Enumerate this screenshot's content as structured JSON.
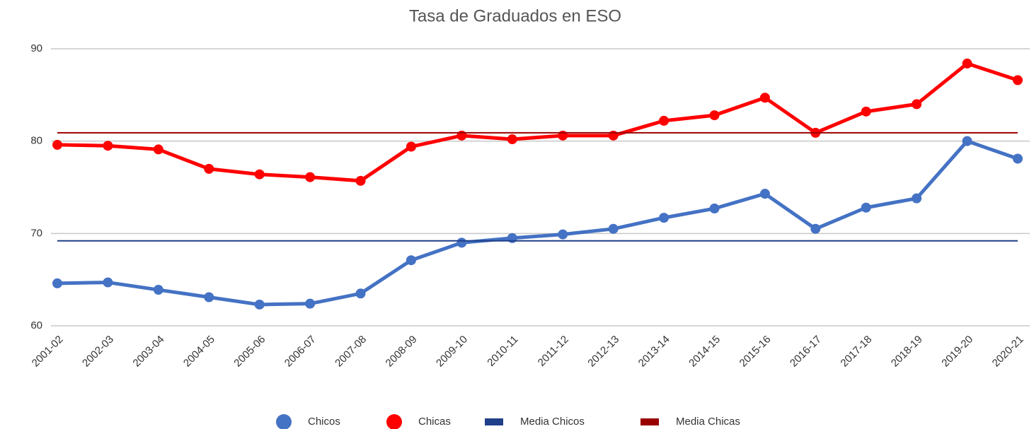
{
  "chart_data": {
    "type": "line",
    "title": "Tasa de Graduados en ESO",
    "categories": [
      "2001-02",
      "2002-03",
      "2003-04",
      "2004-05",
      "2005-06",
      "2006-07",
      "2007-08",
      "2008-09",
      "2009-10",
      "2010-11",
      "2011-12",
      "2012-13",
      "2013-14",
      "2014-15",
      "2015-16",
      "2016-17",
      "2017-18",
      "2018-19",
      "2019-20",
      "2020-21"
    ],
    "series": [
      {
        "name": "Chicos",
        "color": "#4472c4",
        "marker": true,
        "values": [
          64.6,
          64.7,
          63.9,
          63.1,
          62.3,
          62.4,
          63.5,
          67.1,
          69.0,
          69.5,
          69.9,
          70.5,
          71.7,
          72.7,
          74.3,
          70.5,
          72.8,
          73.8,
          80.0,
          78.1
        ]
      },
      {
        "name": "Chicas",
        "color": "#ff0000",
        "marker": true,
        "values": [
          79.6,
          79.5,
          79.1,
          77.0,
          76.4,
          76.1,
          75.7,
          79.4,
          80.6,
          80.2,
          80.6,
          80.6,
          82.2,
          82.8,
          84.7,
          80.9,
          83.2,
          84.0,
          88.4,
          86.6
        ]
      },
      {
        "name": "Media Chicos",
        "color": "#1f3f8a",
        "marker": false,
        "values": [
          69.2,
          69.2,
          69.2,
          69.2,
          69.2,
          69.2,
          69.2,
          69.2,
          69.2,
          69.2,
          69.2,
          69.2,
          69.2,
          69.2,
          69.2,
          69.2,
          69.2,
          69.2,
          69.2,
          69.2
        ]
      },
      {
        "name": "Media Chicas",
        "color": "#990000",
        "marker": false,
        "values": [
          80.9,
          80.9,
          80.9,
          80.9,
          80.9,
          80.9,
          80.9,
          80.9,
          80.9,
          80.9,
          80.9,
          80.9,
          80.9,
          80.9,
          80.9,
          80.9,
          80.9,
          80.9,
          80.9,
          80.9
        ]
      }
    ],
    "ylim": [
      60,
      90
    ],
    "yticks": [
      60,
      70,
      80,
      90
    ],
    "grid": true,
    "legend": "bottom"
  }
}
